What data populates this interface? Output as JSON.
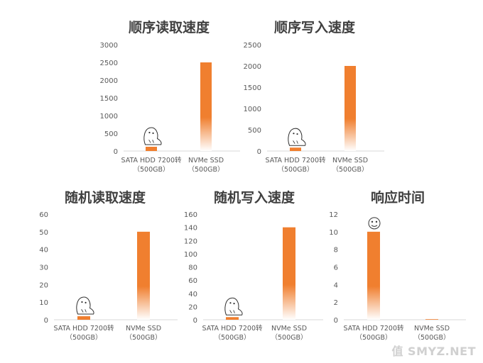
{
  "watermark": "值 SMYZ.NET",
  "chart_data": [
    {
      "type": "bar",
      "title": "顺序读取速度",
      "categories": [
        [
          "SATA HDD 7200转",
          "（500GB）"
        ],
        [
          "NVMe SSD",
          "（500GB）"
        ]
      ],
      "values": [
        120,
        2500
      ],
      "ylim": [
        0,
        3000
      ],
      "yticks": [
        0,
        500,
        1000,
        1500,
        2000,
        2500,
        3000
      ],
      "grid": false,
      "marker_over": 0
    },
    {
      "type": "bar",
      "title": "顺序写入速度",
      "categories": [
        [
          "SATA HDD 7200转",
          "（500GB）"
        ],
        [
          "NVMe SSD",
          "（500GB）"
        ]
      ],
      "values": [
        80,
        2000
      ],
      "ylim": [
        0,
        2500
      ],
      "yticks": [
        0,
        500,
        1000,
        1500,
        2000,
        2500
      ],
      "grid": false,
      "marker_over": 0
    },
    {
      "type": "bar",
      "title": "随机读取速度",
      "categories": [
        [
          "SATA HDD 7200转",
          "（500GB）"
        ],
        [
          "NVMe SSD",
          "（500GB）"
        ]
      ],
      "values": [
        2,
        50
      ],
      "ylim": [
        0,
        60
      ],
      "yticks": [
        0,
        10,
        20,
        30,
        40,
        50,
        60
      ],
      "grid": false,
      "marker_over": 0
    },
    {
      "type": "bar",
      "title": "随机写入速度",
      "categories": [
        [
          "SATA HDD 7200转",
          "（500GB）"
        ],
        [
          "NVMe SSD",
          "（500GB）"
        ]
      ],
      "values": [
        4,
        140
      ],
      "ylim": [
        0,
        160
      ],
      "yticks": [
        0,
        20,
        40,
        60,
        80,
        100,
        120,
        140,
        160
      ],
      "grid": false,
      "marker_over": 0
    },
    {
      "type": "bar",
      "title": "响应时间",
      "categories": [
        [
          "SATA HDD 7200转",
          "（500GB）"
        ],
        [
          "NVMe SSD",
          "（500GB）"
        ]
      ],
      "values": [
        10,
        0.05
      ],
      "ylim": [
        0,
        12
      ],
      "yticks": [
        0,
        2,
        4,
        6,
        8,
        10,
        12
      ],
      "grid": false,
      "marker_over": 0
    }
  ],
  "colors": {
    "bar": "#f07f2f",
    "bar_fade": "#ffffff",
    "axis_text": "#595959",
    "title": "#404040",
    "axis_line": "#d9d9d9"
  }
}
